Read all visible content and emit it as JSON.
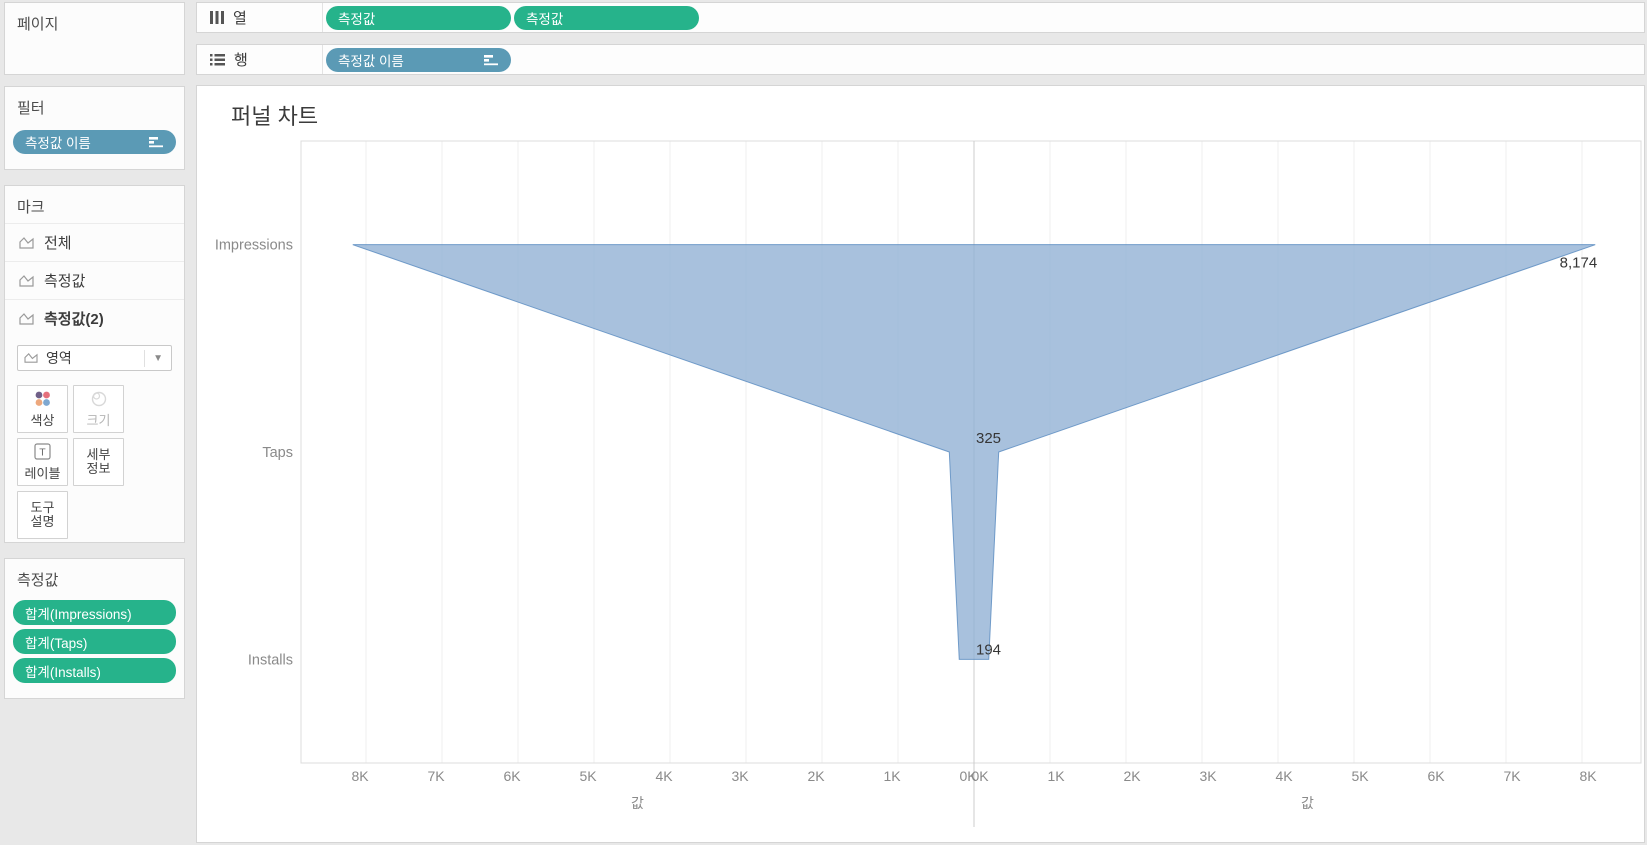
{
  "colors": {
    "green_pill": "#26b38b",
    "blue_pill": "#5b9ab5",
    "funnel_fill": "#8fafd4",
    "funnel_stroke": "#5e8ec2",
    "axis_text": "#8a8a8a",
    "data_label_text": "#363636",
    "gridline": "#efefef",
    "divider": "#cccccc",
    "color_icon_dots": [
      "#6f5f87",
      "#e5707b",
      "#eda87d",
      "#7fa8d0"
    ]
  },
  "sidebar": {
    "pages_title": "페이지",
    "filters_title": "필터",
    "filter_pill": "측정값 이름",
    "marks": {
      "title": "마크",
      "items": [
        {
          "label": "전체"
        },
        {
          "label": "측정값"
        },
        {
          "label": "측정값(2)"
        }
      ],
      "mark_type": "영역",
      "buttons": {
        "color": "색상",
        "size": "크기",
        "label": "레이블",
        "detail": "세부 정보",
        "tooltip": "도구 설명"
      }
    },
    "measure_values": {
      "title": "측정값",
      "pills": [
        "합계(Impressions)",
        "합계(Taps)",
        "합계(Installs)"
      ]
    }
  },
  "shelves": {
    "columns": {
      "label": "열",
      "pills": [
        "측정값",
        "측정값"
      ]
    },
    "rows": {
      "label": "행",
      "pills": [
        "측정값 이름"
      ]
    }
  },
  "chart": {
    "title": "퍼널 차트"
  },
  "chart_data": {
    "type": "area",
    "subtype": "mirrored-funnel",
    "title": "퍼널 차트",
    "categories": [
      "Impressions",
      "Taps",
      "Installs"
    ],
    "values": [
      8174,
      325,
      194
    ],
    "value_labels": [
      "8,174",
      "325",
      "194"
    ],
    "series": [
      {
        "name": "합계(Impressions)",
        "value": 8174
      },
      {
        "name": "합계(Taps)",
        "value": 325
      },
      {
        "name": "합계(Installs)",
        "value": 194
      }
    ],
    "x_axis_left": {
      "label": "값",
      "reversed": true,
      "ticks": [
        "8K",
        "7K",
        "6K",
        "5K",
        "4K",
        "3K",
        "2K",
        "1K",
        "0K"
      ],
      "range": [
        0,
        8800
      ],
      "tick_interval": 1000
    },
    "x_axis_right": {
      "label": "값",
      "reversed": false,
      "ticks": [
        "0K",
        "1K",
        "2K",
        "3K",
        "4K",
        "5K",
        "6K",
        "7K",
        "8K"
      ],
      "range": [
        0,
        8800
      ],
      "tick_interval": 1000
    },
    "legend": "none",
    "grid": "vertical-only"
  }
}
